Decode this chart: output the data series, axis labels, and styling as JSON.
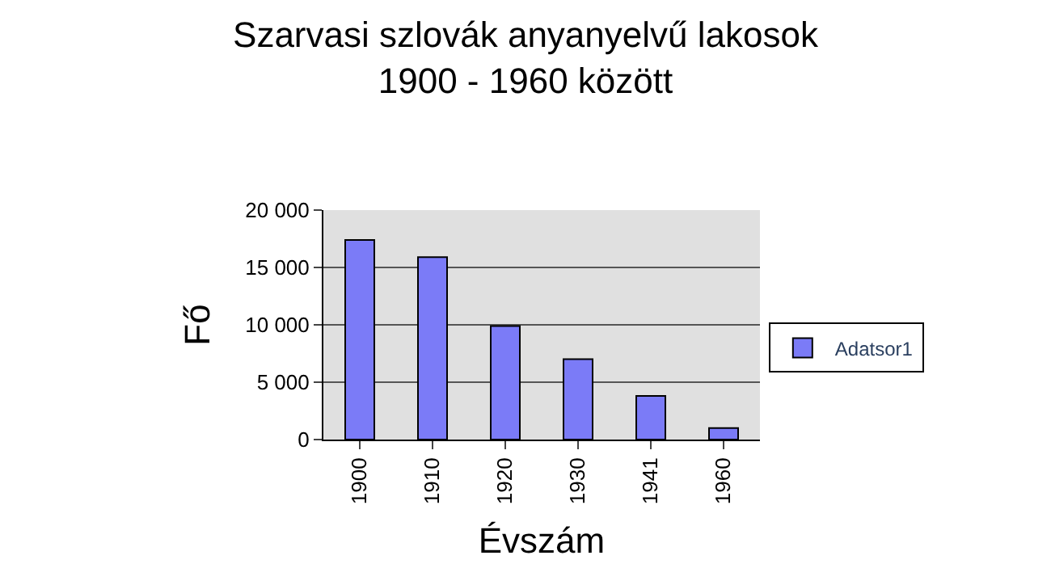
{
  "chart_data": {
    "type": "bar",
    "title": "Szarvasi szlovák anyanyelvű lakosok\n1900 - 1960 között",
    "xlabel": "Évszám",
    "ylabel": "Fő",
    "categories": [
      "1900",
      "1910",
      "1920",
      "1930",
      "1941",
      "1960"
    ],
    "series": [
      {
        "name": "Adatsor1",
        "color": "#7b7bf7",
        "values": [
          17400,
          15900,
          9900,
          7000,
          3800,
          1000
        ]
      }
    ],
    "ylim": [
      0,
      20000
    ],
    "yticks": [
      {
        "value": 0,
        "label": "0"
      },
      {
        "value": 5000,
        "label": "5 000"
      },
      {
        "value": 10000,
        "label": "10 000"
      },
      {
        "value": 15000,
        "label": "15 000"
      },
      {
        "value": 20000,
        "label": "20 000"
      }
    ],
    "grid": "y",
    "legend": "right"
  }
}
